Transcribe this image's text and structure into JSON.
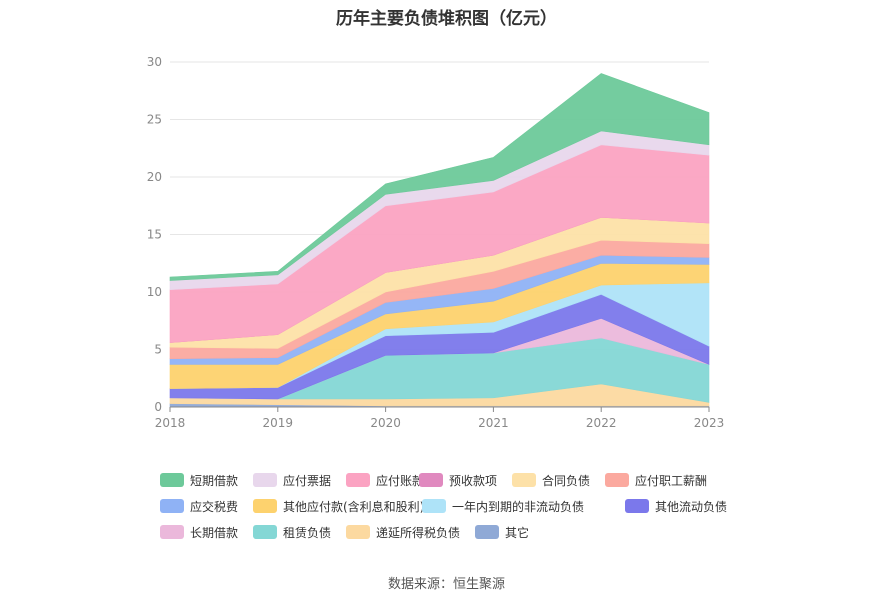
{
  "chart_data": {
    "type": "area",
    "stacked": true,
    "title": "历年主要负债堆积图（亿元）",
    "x": [
      "2018",
      "2019",
      "2020",
      "2021",
      "2022",
      "2023"
    ],
    "ylim": [
      0,
      30
    ],
    "yticks": [
      0,
      5,
      10,
      15,
      20,
      25,
      30
    ],
    "grid": true,
    "legend_position": "bottom",
    "series": [
      {
        "name": "其它",
        "color": "#8fa9d6",
        "values": [
          0.3,
          0.2,
          0.1,
          0.1,
          0.1,
          0.1
        ]
      },
      {
        "name": "递延所得税负债",
        "color": "#fcd9a0",
        "values": [
          0.5,
          0.5,
          0.6,
          0.7,
          1.9,
          0.3
        ]
      },
      {
        "name": "租赁负债",
        "color": "#84d7d5",
        "values": [
          0.0,
          0.0,
          3.8,
          3.9,
          4.0,
          3.3
        ]
      },
      {
        "name": "长期借款",
        "color": "#ebb8db",
        "values": [
          0.0,
          0.0,
          0.0,
          0.0,
          1.7,
          0.0
        ]
      },
      {
        "name": "其他流动负债",
        "color": "#7b78eb",
        "values": [
          0.8,
          1.0,
          1.7,
          1.8,
          2.1,
          1.6
        ]
      },
      {
        "name": "一年内到期的非流动负债",
        "color": "#aee3f8",
        "values": [
          0.0,
          0.0,
          0.6,
          0.9,
          0.8,
          5.5
        ]
      },
      {
        "name": "其他应付款(含利息和股利)",
        "color": "#fdd26e",
        "values": [
          2.1,
          2.0,
          1.3,
          1.8,
          1.9,
          1.6
        ]
      },
      {
        "name": "应交税费",
        "color": "#8fb2f5",
        "values": [
          0.5,
          0.6,
          1.0,
          1.1,
          0.7,
          0.6
        ]
      },
      {
        "name": "应付职工薪酬",
        "color": "#fba99f",
        "values": [
          1.0,
          0.8,
          0.9,
          1.5,
          1.3,
          1.2
        ]
      },
      {
        "name": "合同负债",
        "color": "#fde1a8",
        "values": [
          0.4,
          1.2,
          1.7,
          1.4,
          2.0,
          1.8
        ]
      },
      {
        "name": "预收款项",
        "color": "#e089bf",
        "values": [
          0.0,
          0.0,
          0.0,
          0.0,
          0.0,
          0.0
        ]
      },
      {
        "name": "应付账款",
        "color": "#fba3c2",
        "values": [
          4.6,
          4.4,
          5.8,
          5.5,
          6.3,
          5.9
        ]
      },
      {
        "name": "应付票据",
        "color": "#e8d7ec",
        "values": [
          0.8,
          0.8,
          1.0,
          1.0,
          1.2,
          0.9
        ]
      },
      {
        "name": "短期借款",
        "color": "#6dc99a",
        "values": [
          0.3,
          0.3,
          0.9,
          2.0,
          5.0,
          2.8
        ]
      }
    ],
    "legend_order": [
      "短期借款",
      "应付票据",
      "应付账款",
      "预收款项",
      "合同负债",
      "应付职工薪酬",
      "应交税费",
      "其他应付款(含利息和股利)",
      "一年内到期的非流动负债",
      "其他流动负债",
      "长期借款",
      "租赁负债",
      "递延所得税负债",
      "其它"
    ],
    "source": "数据来源：恒生聚源"
  }
}
